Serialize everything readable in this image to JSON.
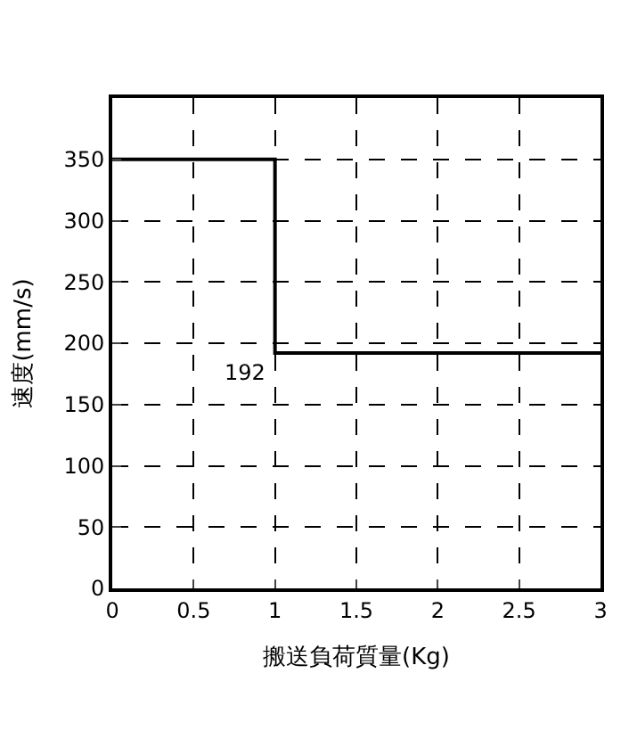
{
  "chart_data": {
    "type": "step",
    "xlabel": "搬送負荷質量(Kg)",
    "ylabel": "速度(mm/s)",
    "x": [
      0,
      1,
      3
    ],
    "series": [
      {
        "color": "#000000",
        "values": [
          350,
          192,
          192
        ]
      }
    ],
    "annotations": [
      {
        "text": "192",
        "x": 1,
        "y": 192
      }
    ],
    "xlim": [
      0,
      3
    ],
    "xticks": [
      0,
      0.5,
      1,
      1.5,
      2,
      2.5,
      3
    ],
    "ylim": [
      0,
      400
    ],
    "yticks": [
      0,
      50,
      100,
      150,
      200,
      250,
      300,
      350
    ],
    "grid": true,
    "marker": "none",
    "line_style": "solid"
  }
}
